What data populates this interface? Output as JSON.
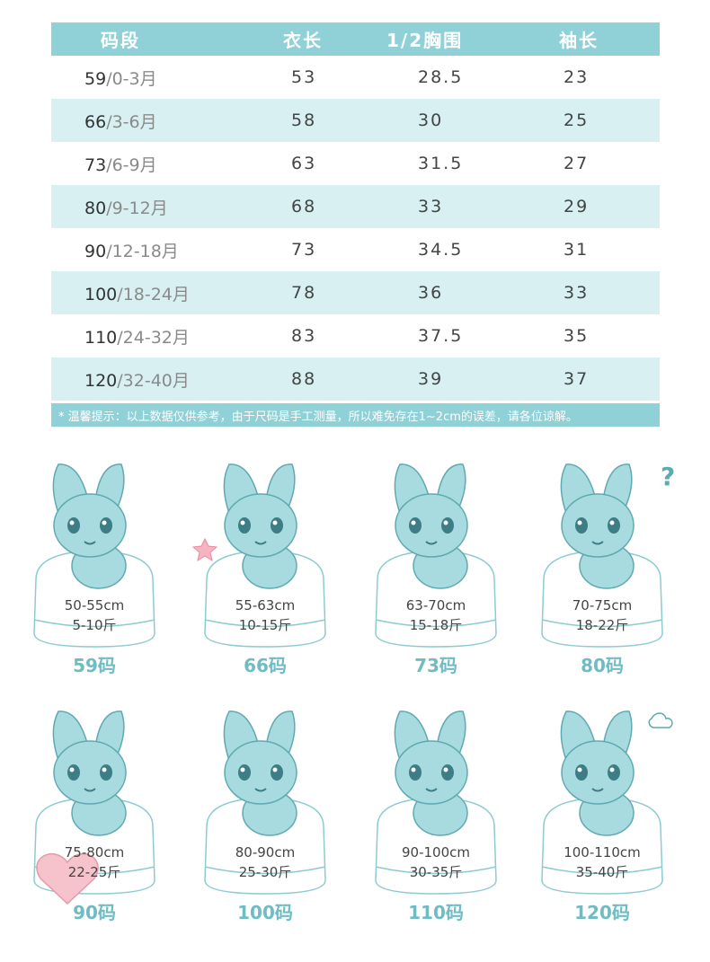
{
  "table": {
    "headers": [
      "码段",
      "衣长",
      "1/2胸围",
      "袖长"
    ],
    "rows": [
      {
        "size": "59",
        "age": "/0-3月",
        "length": "53",
        "chest": "28.5",
        "sleeve": "23"
      },
      {
        "size": "66",
        "age": "/3-6月",
        "length": "58",
        "chest": "30",
        "sleeve": "25"
      },
      {
        "size": "73",
        "age": "/6-9月",
        "length": "63",
        "chest": "31.5",
        "sleeve": "27"
      },
      {
        "size": "80",
        "age": "/9-12月",
        "length": "68",
        "chest": "33",
        "sleeve": "29"
      },
      {
        "size": "90",
        "age": "/12-18月",
        "length": "73",
        "chest": "34.5",
        "sleeve": "31"
      },
      {
        "size": "100",
        "age": "/18-24月",
        "length": "78",
        "chest": "36",
        "sleeve": "33"
      },
      {
        "size": "110",
        "age": "/24-32月",
        "length": "83",
        "chest": "37.5",
        "sleeve": "35"
      },
      {
        "size": "120",
        "age": "/32-40月",
        "length": "88",
        "chest": "39",
        "sleeve": "37"
      }
    ],
    "note": "* 温馨提示：以上数据仅供参考，由于尺码是手工测量，所以难免存在1~2cm的误差，请各位谅解。"
  },
  "cards": [
    {
      "height": "50-55cm",
      "weight": "5-10斤",
      "label": "59码",
      "icon": "bunny-smile-icon"
    },
    {
      "height": "55-63cm",
      "weight": "10-15斤",
      "label": "66码",
      "icon": "bunny-star-icon"
    },
    {
      "height": "63-70cm",
      "weight": "15-18斤",
      "label": "73码",
      "icon": "bunny-tilt-icon"
    },
    {
      "height": "70-75cm",
      "weight": "18-22斤",
      "label": "80码",
      "icon": "bunny-question-icon"
    },
    {
      "height": "75-80cm",
      "weight": "22-25斤",
      "label": "90码",
      "icon": "bunny-heart-icon"
    },
    {
      "height": "80-90cm",
      "weight": "25-30斤",
      "label": "100码",
      "icon": "bunny-lounge-icon"
    },
    {
      "height": "90-100cm",
      "weight": "30-35斤",
      "label": "110码",
      "icon": "bunny-cry-icon"
    },
    {
      "height": "100-110cm",
      "weight": "35-40斤",
      "label": "120码",
      "icon": "bunny-angry-icon"
    }
  ],
  "colors": {
    "accent": "#8fd1d6",
    "row_alt": "#d8f0f2",
    "bunny": "#a8dbe0",
    "bunny_outline": "#5fa9b1",
    "label": "#6fbcc3"
  }
}
